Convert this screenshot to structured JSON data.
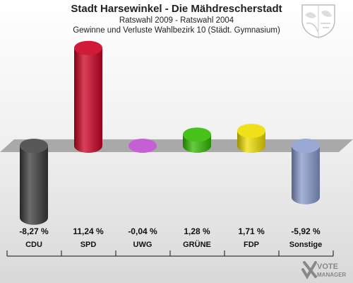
{
  "header": {
    "title": "Stadt Harsewinkel - Die Mähdrescherstadt",
    "subtitle1": "Ratswahl 2009 - Ratswahl 2004",
    "subtitle2": "Gewinne und Verluste Wahlbezirk 10 (Städt. Gymnasium)"
  },
  "logo": {
    "line1": "VOTE",
    "line2": "MANAGER"
  },
  "chart_data": {
    "type": "bar",
    "categories": [
      "CDU",
      "SPD",
      "UWG",
      "GRÜNE",
      "FDP",
      "Sonstige"
    ],
    "values": [
      -8.27,
      11.24,
      -0.04,
      1.28,
      1.71,
      -5.92
    ],
    "value_labels": [
      "-8,27 %",
      "11,24 %",
      "-0,04 %",
      "1,28 %",
      "1,71 %",
      "-5,92 %"
    ],
    "colors": [
      "#3a3a3a",
      "#cc0022",
      "#bb44cc",
      "#33bb00",
      "#eedd00",
      "#8899cc"
    ],
    "ylim": [
      -9,
      12
    ],
    "grid": false,
    "legend": "none"
  }
}
